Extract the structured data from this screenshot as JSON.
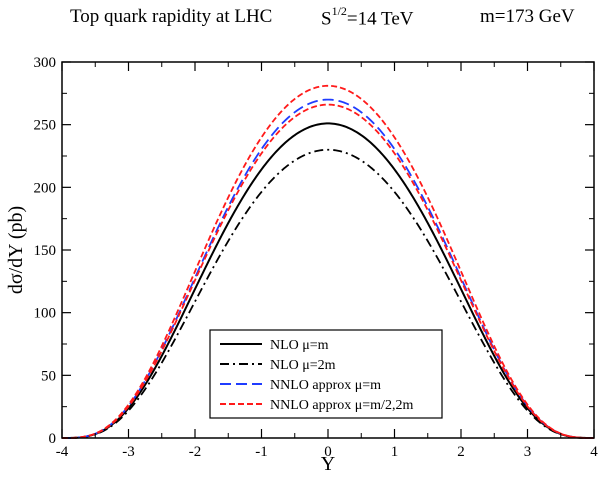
{
  "title": {
    "part1": "Top quark rapidity at  LHC",
    "energy_base": "S",
    "energy_exp": "1/2",
    "energy_rest": "=14 TeV",
    "mass": "m=173 GeV"
  },
  "chart_data": {
    "type": "line",
    "xlabel": "Y",
    "ylabel": "dσ/dY (pb)",
    "xlim": [
      -4,
      4
    ],
    "ylim": [
      0,
      300
    ],
    "xticks": [
      -4,
      -3,
      -2,
      -1,
      0,
      1,
      2,
      3,
      4
    ],
    "yticks": [
      0,
      50,
      100,
      150,
      200,
      250,
      300
    ],
    "grid": false,
    "legend_position": "bottom-center",
    "series": [
      {
        "name": "NLO μ=m",
        "color": "#000000",
        "dash": "solid",
        "peak": 251,
        "x": [
          -4,
          -3.5,
          -3,
          -2.5,
          -2,
          -1.5,
          -1,
          -0.5,
          0,
          0.5,
          1,
          1.5,
          2,
          2.5,
          3,
          3.5,
          4
        ],
        "y": [
          0,
          6,
          22,
          50,
          90,
          140,
          190,
          235,
          251,
          235,
          190,
          140,
          90,
          50,
          22,
          6,
          0
        ]
      },
      {
        "name": "NLO μ=2m",
        "color": "#000000",
        "dash": "dashdot",
        "peak": 230,
        "x": [
          -4,
          -3.5,
          -3,
          -2.5,
          -2,
          -1.5,
          -1,
          -0.5,
          0,
          0.5,
          1,
          1.5,
          2,
          2.5,
          3,
          3.5,
          4
        ],
        "y": [
          0,
          5,
          20,
          46,
          83,
          128,
          175,
          215,
          230,
          215,
          175,
          128,
          83,
          46,
          20,
          5,
          0
        ]
      },
      {
        "name": "NNLO approx μ=m",
        "color": "#1f3cff",
        "dash": "dashed",
        "peak": 270,
        "x": [
          -4,
          -3.5,
          -3,
          -2.5,
          -2,
          -1.5,
          -1,
          -0.5,
          0,
          0.5,
          1,
          1.5,
          2,
          2.5,
          3,
          3.5,
          4
        ],
        "y": [
          0,
          6,
          24,
          54,
          97,
          150,
          205,
          252,
          270,
          252,
          205,
          150,
          97,
          54,
          24,
          6,
          0
        ]
      },
      {
        "name": "NNLO approx μ=m/2,2m",
        "color": "#ff1a1a",
        "dash": "shortdash",
        "peak": 281,
        "x": [
          -4,
          -3.5,
          -3,
          -2.5,
          -2,
          -1.5,
          -1,
          -0.5,
          0,
          0.5,
          1,
          1.5,
          2,
          2.5,
          3,
          3.5,
          4
        ],
        "y": [
          0,
          7,
          26,
          57,
          101,
          156,
          213,
          262,
          281,
          262,
          213,
          156,
          101,
          57,
          26,
          7,
          0
        ]
      },
      {
        "name": "",
        "color": "#ff1a1a",
        "dash": "shortdash",
        "peak": 266,
        "x": [
          -4,
          -3.5,
          -3,
          -2.5,
          -2,
          -1.5,
          -1,
          -0.5,
          0,
          0.5,
          1,
          1.5,
          2,
          2.5,
          3,
          3.5,
          4
        ],
        "y": [
          0,
          5,
          22,
          52,
          95,
          147,
          202,
          248,
          266,
          248,
          202,
          147,
          95,
          52,
          22,
          5,
          0
        ]
      }
    ]
  }
}
